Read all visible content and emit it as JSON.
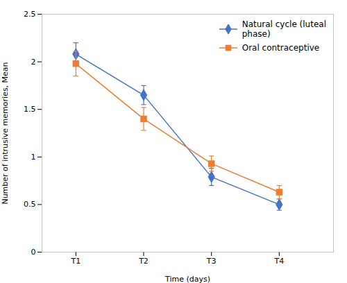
{
  "chart_data": {
    "type": "line",
    "xlabel": "Time (days)",
    "ylabel": "Number of intrusive memories, Mean",
    "x": [
      1,
      2,
      3,
      4
    ],
    "xlim": [
      0.5,
      4.8
    ],
    "xticks": [
      {
        "value": 1,
        "label": "T1"
      },
      {
        "value": 2,
        "label": "T2"
      },
      {
        "value": 3,
        "label": "T3"
      },
      {
        "value": 4,
        "label": "T4"
      }
    ],
    "ylim": [
      0,
      2.5
    ],
    "yticks": [
      0,
      0.5,
      1,
      1.5,
      2,
      2.5
    ],
    "series": [
      {
        "name": "Natural cycle (luteal\nphase)",
        "color": "#4472C4",
        "marker": "diamond",
        "values": [
          2.08,
          1.65,
          0.79,
          0.5
        ],
        "errors": [
          0.12,
          0.1,
          0.09,
          0.06
        ]
      },
      {
        "name": "Oral contraceptive",
        "color": "#ED7D31",
        "marker": "square",
        "values": [
          1.98,
          1.4,
          0.93,
          0.63
        ],
        "errors": [
          0.13,
          0.12,
          0.08,
          0.07
        ]
      }
    ],
    "legend": "upper right",
    "grid": false
  }
}
